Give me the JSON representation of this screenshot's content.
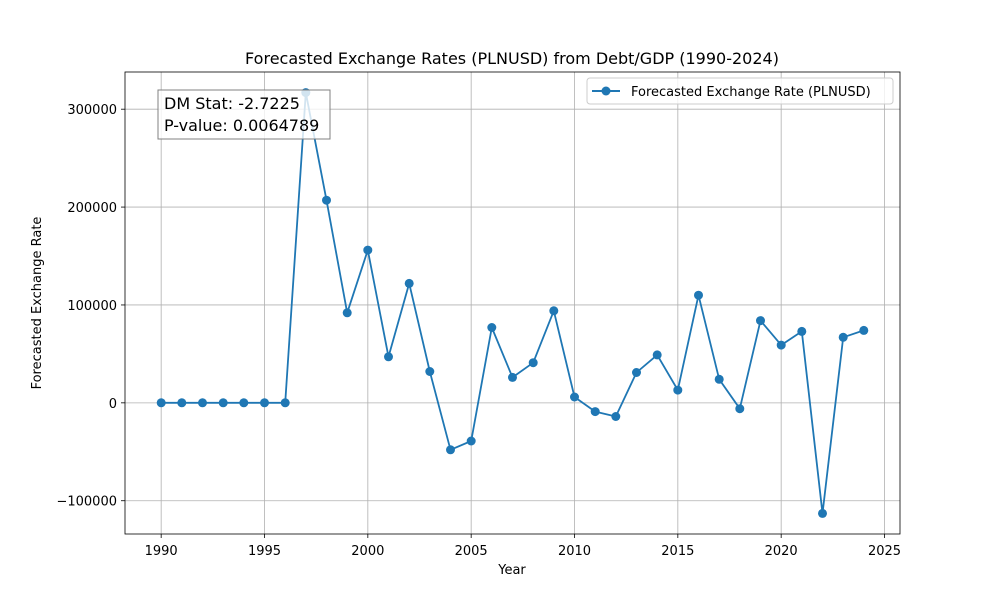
{
  "chart_data": {
    "type": "line",
    "title": "Forecasted Exchange Rates (PLNUSD) from Debt/GDP (1990-2024)",
    "xlabel": "Year",
    "ylabel": "Forecasted Exchange Rate",
    "xlim": [
      1988.25,
      2025.75
    ],
    "ylim": [
      -134000,
      338000
    ],
    "x_ticks": [
      1990,
      1995,
      2000,
      2005,
      2010,
      2015,
      2020,
      2025
    ],
    "y_ticks": [
      -100000,
      0,
      100000,
      200000,
      300000
    ],
    "y_tick_labels": [
      "−100000",
      "0",
      "100000",
      "200000",
      "300000"
    ],
    "grid": true,
    "legend_position": "upper right",
    "series": [
      {
        "name": "Forecasted Exchange Rate (PLNUSD)",
        "color": "#1f77b4",
        "marker": "circle",
        "x": [
          1990,
          1991,
          1992,
          1993,
          1994,
          1995,
          1996,
          1997,
          1998,
          1999,
          2000,
          2001,
          2002,
          2003,
          2004,
          2005,
          2006,
          2007,
          2008,
          2009,
          2010,
          2011,
          2012,
          2013,
          2014,
          2015,
          2016,
          2017,
          2018,
          2019,
          2020,
          2021,
          2022,
          2023,
          2024
        ],
        "y": [
          0,
          0,
          0,
          0,
          0,
          0,
          0,
          317000,
          207000,
          92000,
          156000,
          47000,
          122000,
          32000,
          -48000,
          -39000,
          77000,
          26000,
          41000,
          94000,
          6000,
          -9000,
          -14000,
          31000,
          49000,
          13000,
          110000,
          24000,
          -6000,
          84000,
          59000,
          73000,
          -113000,
          67000,
          74000
        ]
      }
    ],
    "annotations": [
      {
        "lines": [
          "DM Stat: -2.7225",
          "P-value: 0.0064789"
        ]
      }
    ]
  }
}
